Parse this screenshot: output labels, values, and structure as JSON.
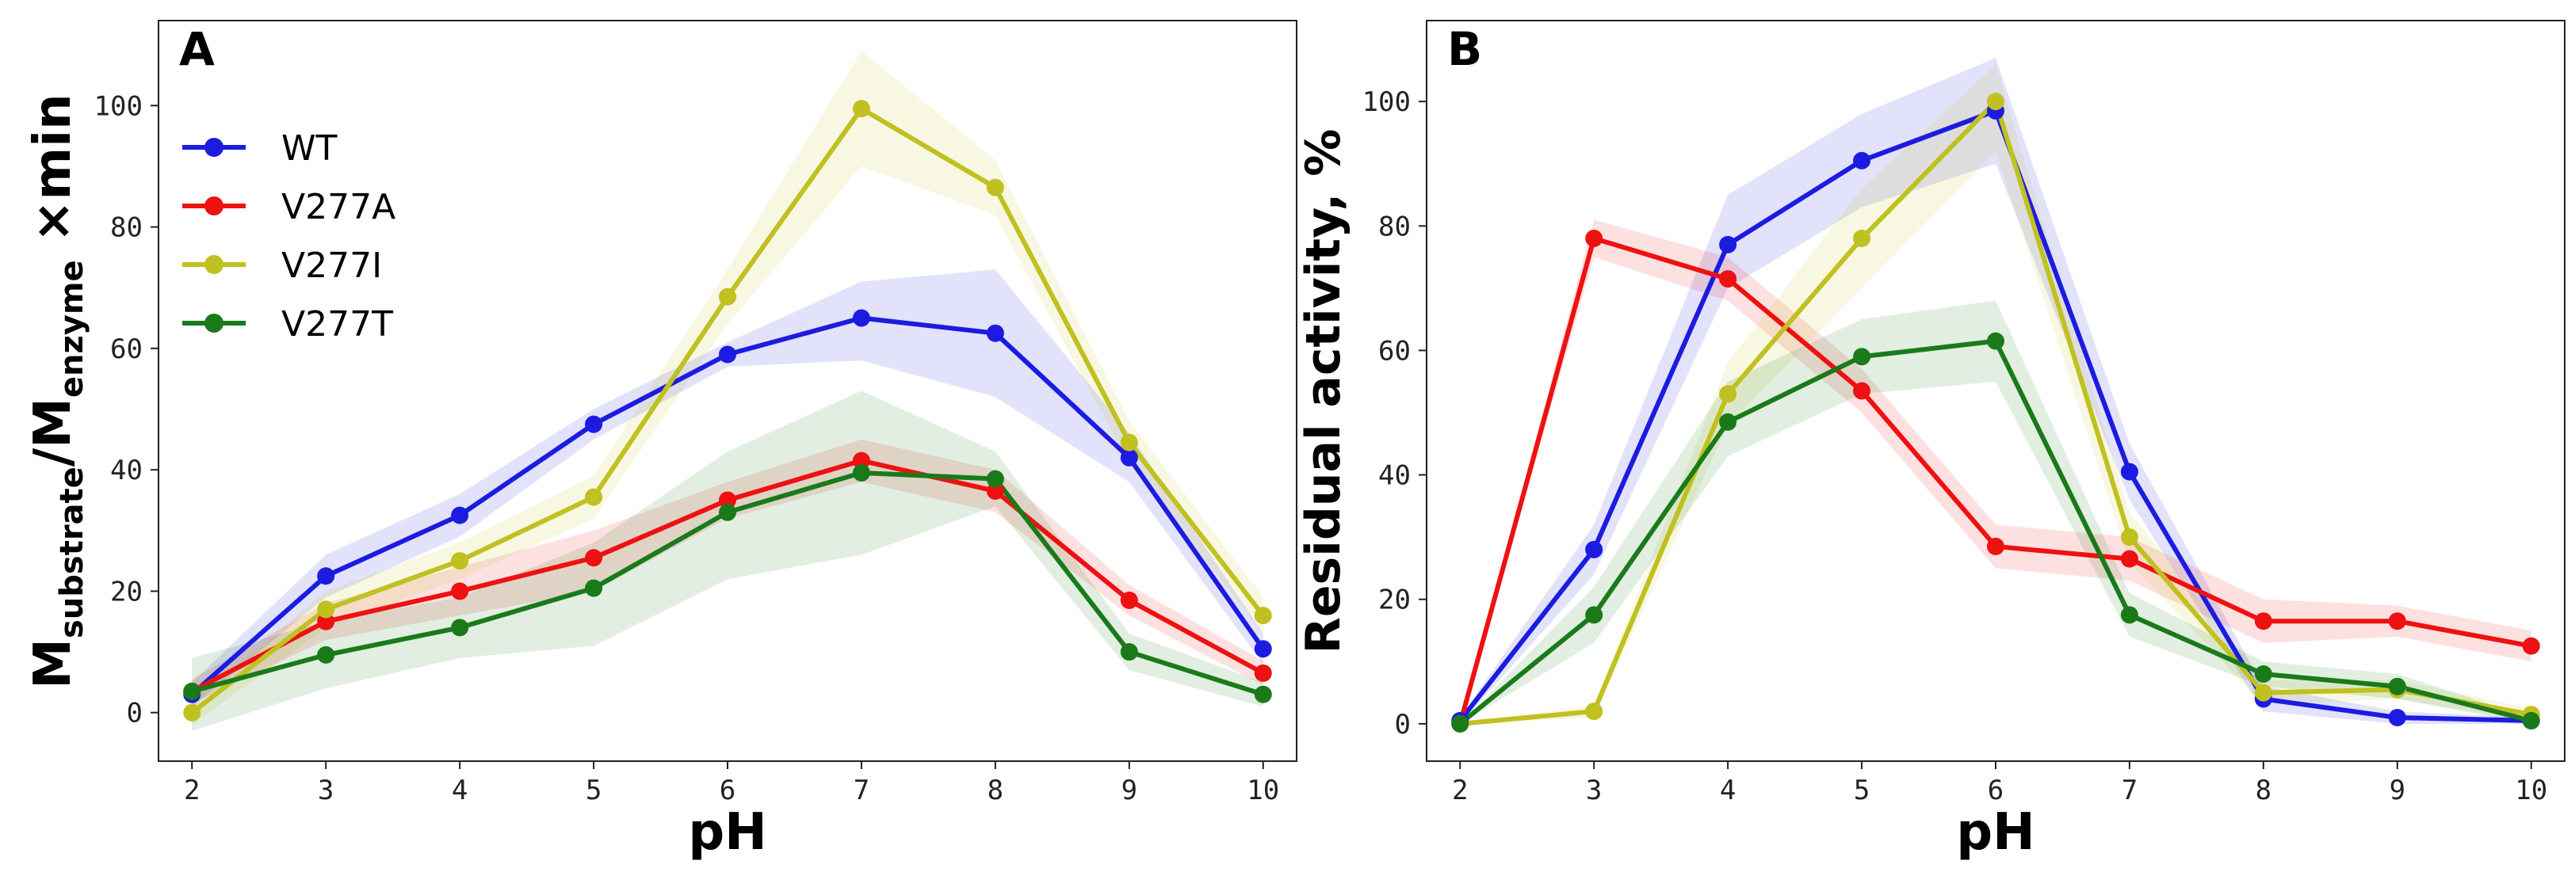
{
  "chart_data": [
    {
      "panel": "A",
      "type": "line",
      "x": [
        2,
        3,
        4,
        5,
        6,
        7,
        8,
        9,
        10
      ],
      "xlabel": "pH",
      "ylabel_main": "M",
      "ylabel_sub1": "substrate",
      "ylabel_mid": "/M",
      "ylabel_sub2": "enzyme",
      "ylabel_tail": " ×min",
      "xlim": [
        1.75,
        10.25
      ],
      "ylim": [
        -8,
        114
      ],
      "xticks": [
        2,
        3,
        4,
        5,
        6,
        7,
        8,
        9,
        10
      ],
      "yticks": [
        0,
        20,
        40,
        60,
        80,
        100
      ],
      "legend": "top-left",
      "series": [
        {
          "name": "WT",
          "color": "#1c1ce0",
          "values": [
            3,
            22.5,
            32.5,
            47.5,
            59,
            65,
            62.5,
            42,
            10.5
          ],
          "lower": [
            1,
            19,
            29,
            45,
            57,
            58,
            52,
            38,
            8
          ],
          "upper": [
            5,
            26,
            36,
            50,
            61,
            71,
            73,
            46,
            13
          ]
        },
        {
          "name": "V277A",
          "color": "#ee1111",
          "values": [
            3.5,
            15,
            20,
            25.5,
            35,
            41.5,
            36.5,
            18.5,
            6.5
          ],
          "lower": [
            1.5,
            12,
            16,
            20,
            32,
            38,
            33,
            16,
            4.5
          ],
          "upper": [
            5.5,
            18,
            24,
            30,
            38,
            45,
            40,
            21,
            8.5
          ]
        },
        {
          "name": "V277I",
          "color": "#c0c020",
          "values": [
            0,
            17,
            25,
            35.5,
            68.5,
            99.5,
            86.5,
            44.5,
            16
          ],
          "lower": [
            -2,
            14,
            22,
            32,
            64,
            90,
            82,
            41,
            13
          ],
          "upper": [
            2,
            20,
            28,
            39,
            73,
            109,
            91,
            48,
            19
          ]
        },
        {
          "name": "V277T",
          "color": "#1a7a1a",
          "values": [
            3.5,
            9.5,
            14,
            20.5,
            33,
            39.5,
            38.5,
            10,
            3
          ],
          "lower": [
            -3,
            4,
            9,
            11,
            22,
            26,
            34,
            7,
            1
          ],
          "upper": [
            9,
            15,
            19,
            28,
            43,
            53,
            43,
            13,
            5
          ]
        }
      ]
    },
    {
      "panel": "B",
      "type": "line",
      "x": [
        2,
        3,
        4,
        5,
        6,
        7,
        8,
        9,
        10
      ],
      "xlabel": "pH",
      "ylabel": "Residual activity, %",
      "xlim": [
        1.75,
        10.25
      ],
      "ylim": [
        -6,
        113
      ],
      "xticks": [
        2,
        3,
        4,
        5,
        6,
        7,
        8,
        9,
        10
      ],
      "yticks": [
        0,
        20,
        40,
        60,
        80,
        100
      ],
      "series": [
        {
          "name": "WT",
          "color": "#1c1ce0",
          "values": [
            0.5,
            28,
            77,
            90.5,
            98.5,
            40.5,
            4,
            1,
            0.5
          ],
          "lower": [
            0,
            24,
            70,
            83,
            90,
            36,
            2,
            0,
            0
          ],
          "upper": [
            1,
            32,
            85,
            98,
            107,
            45,
            6,
            2,
            1
          ]
        },
        {
          "name": "V277A",
          "color": "#ee1111",
          "values": [
            0,
            78,
            71.5,
            53.5,
            28.5,
            26.5,
            16.5,
            16.5,
            12.5
          ],
          "lower": [
            0,
            75,
            68,
            50,
            25,
            23,
            13,
            14,
            10
          ],
          "upper": [
            0,
            81,
            75,
            57,
            32,
            30,
            20,
            19,
            15
          ]
        },
        {
          "name": "V277I",
          "color": "#c0c020",
          "values": [
            0,
            2,
            53,
            78,
            100,
            30,
            5,
            5.5,
            1.5
          ],
          "lower": [
            0,
            1,
            48,
            70,
            92,
            26,
            3,
            4,
            0.5
          ],
          "upper": [
            0,
            3,
            58,
            86,
            106,
            34,
            7,
            7,
            2.5
          ]
        },
        {
          "name": "V277T",
          "color": "#1a7a1a",
          "values": [
            0,
            17.5,
            48.5,
            59,
            61.5,
            17.5,
            8,
            6,
            0.5
          ],
          "lower": [
            0,
            13,
            43,
            53,
            55,
            14,
            6,
            4,
            0
          ],
          "upper": [
            0,
            22,
            55,
            65,
            68,
            21,
            10,
            8,
            1
          ]
        }
      ]
    }
  ]
}
